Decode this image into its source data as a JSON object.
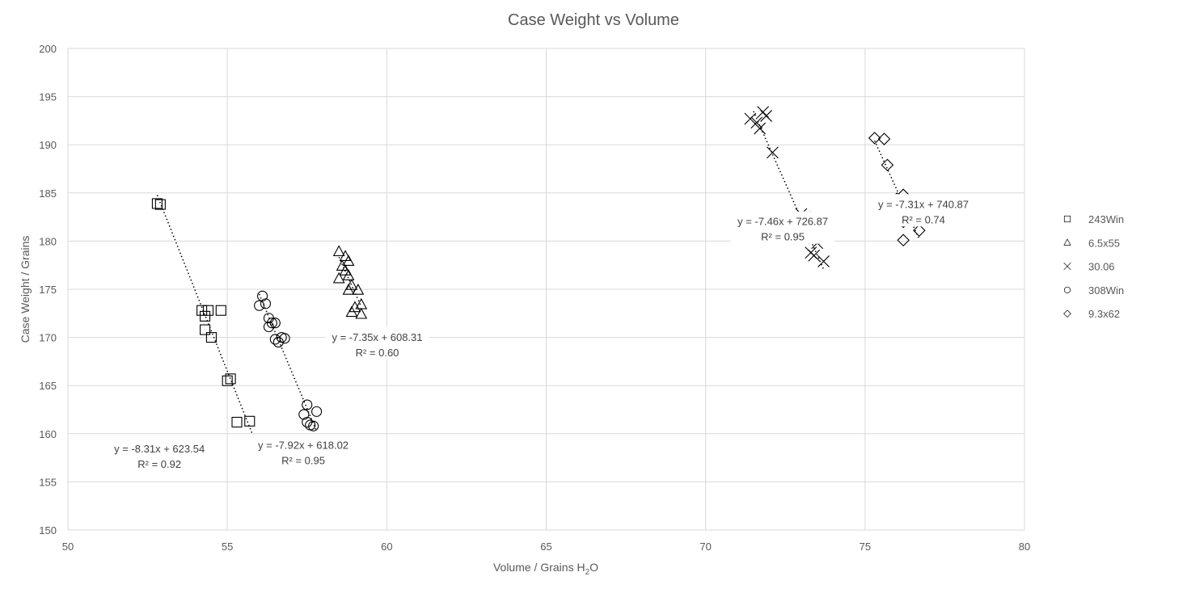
{
  "chart_data": {
    "type": "scatter",
    "title": "Case Weight vs Volume",
    "xlabel": "Volume / Grains H",
    "xlabel_sub": "2",
    "xlabel_suffix": "O",
    "ylabel": "Case Weight / Grains",
    "xlim": [
      50,
      80
    ],
    "ylim": [
      150,
      200
    ],
    "x_ticks": [
      50,
      55,
      60,
      65,
      70,
      75,
      80
    ],
    "y_ticks": [
      150,
      155,
      160,
      165,
      170,
      175,
      180,
      185,
      190,
      195,
      200
    ],
    "grid": true,
    "legend_position": "right",
    "series": [
      {
        "name": "243Win",
        "marker": "square",
        "points": [
          [
            52.8,
            183.9
          ],
          [
            52.9,
            183.8
          ],
          [
            54.2,
            172.8
          ],
          [
            54.3,
            172.2
          ],
          [
            54.3,
            170.8
          ],
          [
            54.4,
            172.8
          ],
          [
            54.5,
            170.0
          ],
          [
            54.8,
            172.8
          ],
          [
            55.0,
            165.5
          ],
          [
            55.1,
            165.7
          ],
          [
            55.3,
            161.2
          ],
          [
            55.7,
            161.3
          ]
        ],
        "trendline": {
          "slope": -8.31,
          "intercept": 623.54,
          "x_range": [
            52.8,
            55.8
          ]
        },
        "equation": "y = -8.31x + 623.54",
        "r2": "R² = 0.92"
      },
      {
        "name": "6.5x55",
        "marker": "triangle",
        "points": [
          [
            58.5,
            178.9
          ],
          [
            58.7,
            178.4
          ],
          [
            58.8,
            177.9
          ],
          [
            58.6,
            177.4
          ],
          [
            58.7,
            176.9
          ],
          [
            58.5,
            176.1
          ],
          [
            58.8,
            176.4
          ],
          [
            58.9,
            175.4
          ],
          [
            58.8,
            174.9
          ],
          [
            59.1,
            174.9
          ],
          [
            59.2,
            173.4
          ],
          [
            59.0,
            173.1
          ],
          [
            58.9,
            172.6
          ],
          [
            59.2,
            172.4
          ]
        ],
        "trendline": {
          "slope": -7.35,
          "intercept": 608.31,
          "x_range": [
            58.5,
            59.2
          ]
        },
        "equation": "y = -7.35x + 608.31",
        "r2": "R² = 0.60"
      },
      {
        "name": "30.06",
        "marker": "x",
        "points": [
          [
            71.4,
            192.7
          ],
          [
            71.6,
            192.3
          ],
          [
            71.7,
            191.7
          ],
          [
            71.8,
            193.4
          ],
          [
            71.9,
            193.0
          ],
          [
            72.1,
            189.2
          ],
          [
            73.0,
            182.8
          ],
          [
            73.1,
            182.5
          ],
          [
            73.3,
            182.1
          ],
          [
            73.0,
            180.8
          ],
          [
            73.2,
            180.9
          ],
          [
            73.4,
            180.3
          ],
          [
            73.5,
            179.8
          ],
          [
            73.3,
            178.8
          ],
          [
            73.4,
            178.5
          ],
          [
            73.7,
            177.9
          ]
        ],
        "trendline": {
          "slope": -7.46,
          "intercept": 726.87,
          "x_range": [
            71.5,
            73.7
          ]
        },
        "equation": "y = -7.46x + 726.87",
        "r2": "R² = 0.95"
      },
      {
        "name": "308Win",
        "marker": "circle",
        "points": [
          [
            56.1,
            174.3
          ],
          [
            56.0,
            173.3
          ],
          [
            56.2,
            173.5
          ],
          [
            56.3,
            172.0
          ],
          [
            56.4,
            171.5
          ],
          [
            56.5,
            171.5
          ],
          [
            56.3,
            171.1
          ],
          [
            56.5,
            169.8
          ],
          [
            56.7,
            170.0
          ],
          [
            56.6,
            169.5
          ],
          [
            56.8,
            169.9
          ],
          [
            57.5,
            163.0
          ],
          [
            57.4,
            162.0
          ],
          [
            57.8,
            162.3
          ],
          [
            57.5,
            161.2
          ],
          [
            57.6,
            160.9
          ],
          [
            57.7,
            160.8
          ]
        ],
        "trendline": {
          "slope": -7.92,
          "intercept": 618.02,
          "x_range": [
            56.0,
            57.8
          ]
        },
        "equation": "y = -7.92x + 618.02",
        "r2": "R² = 0.95"
      },
      {
        "name": "9.3x62",
        "marker": "diamond",
        "points": [
          [
            75.3,
            190.7
          ],
          [
            75.6,
            190.6
          ],
          [
            75.7,
            187.9
          ],
          [
            76.0,
            184.4
          ],
          [
            76.1,
            184.1
          ],
          [
            76.2,
            184.8
          ],
          [
            76.1,
            183.7
          ],
          [
            76.2,
            182.0
          ],
          [
            76.7,
            182.2
          ],
          [
            76.7,
            181.1
          ],
          [
            76.2,
            180.1
          ]
        ],
        "trendline": {
          "slope": -7.31,
          "intercept": 740.87,
          "x_range": [
            75.3,
            76.7
          ]
        },
        "equation": "y = -7.31x + 740.87",
        "r2": "R² = 0.74"
      }
    ]
  }
}
